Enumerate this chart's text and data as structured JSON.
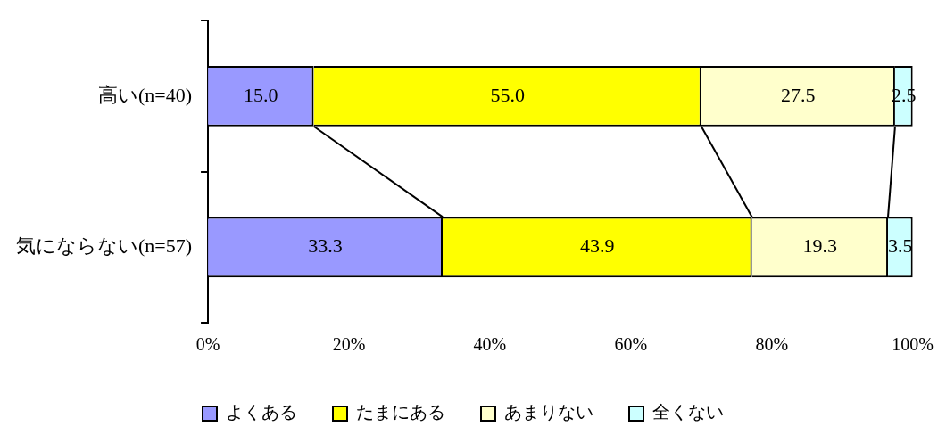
{
  "chart_data": {
    "type": "bar",
    "orientation": "horizontal",
    "stacked": true,
    "categories": [
      "高い(n=40)",
      "気にならない(n=57)"
    ],
    "series": [
      {
        "name": "よくある",
        "color": "#9999ff",
        "values": [
          15.0,
          33.3
        ],
        "value_labels": [
          "15.0",
          "33.3"
        ]
      },
      {
        "name": "たまにある",
        "color": "#ffff00",
        "values": [
          55.0,
          43.9
        ],
        "value_labels": [
          "55.0",
          "43.9"
        ]
      },
      {
        "name": "あまりない",
        "color": "#ffffcc",
        "values": [
          27.5,
          19.3
        ],
        "value_labels": [
          "27.5",
          "19.3"
        ]
      },
      {
        "name": "全くない",
        "color": "#ccffff",
        "values": [
          2.5,
          3.5
        ],
        "value_labels": [
          "2.5",
          "3.5"
        ]
      }
    ],
    "xlim": [
      0,
      100
    ],
    "xticks": [
      {
        "value": 0,
        "label": "0%"
      },
      {
        "value": 20,
        "label": "20%"
      },
      {
        "value": 40,
        "label": "40%"
      },
      {
        "value": 60,
        "label": "60%"
      },
      {
        "value": 80,
        "label": "80%"
      },
      {
        "value": 100,
        "label": "100%"
      }
    ],
    "grid": false,
    "legend": "bottom"
  }
}
